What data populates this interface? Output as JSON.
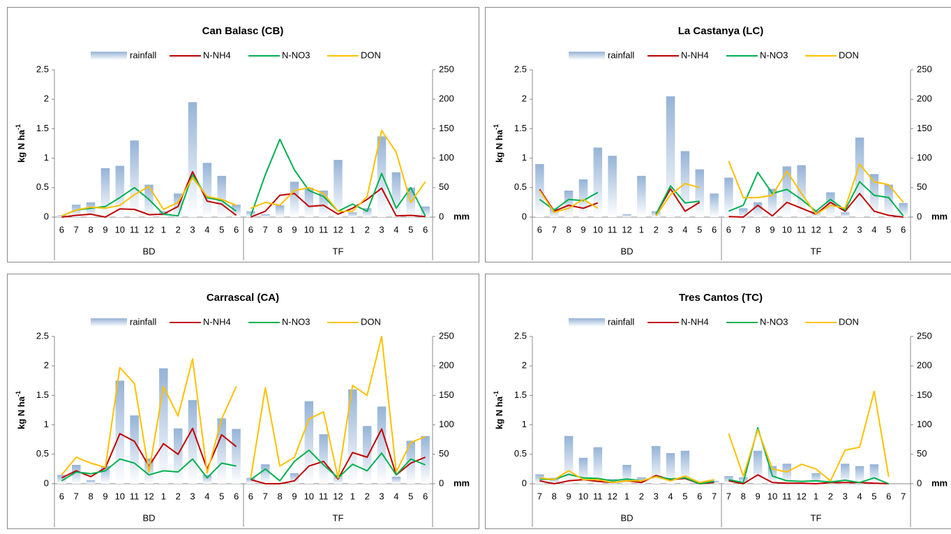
{
  "chart_data": [
    {
      "type": "combo",
      "title": "Can Balasc (CB)",
      "ylabel": "kg N ha",
      "ylabel_exponent": "-1",
      "y2label": "mm",
      "ylim": [
        0,
        2.5
      ],
      "yticks": [
        0,
        0.5,
        1,
        1.5,
        2,
        2.5
      ],
      "y2lim": [
        0,
        250
      ],
      "y2ticks": [
        0,
        50,
        100,
        150,
        200,
        250
      ],
      "groups": [
        {
          "label": "BD",
          "categories": [
            "6",
            "7",
            "8",
            "9",
            "10",
            "11",
            "12",
            "1",
            "2",
            "3",
            "4",
            "5",
            "6"
          ]
        },
        {
          "label": "TF",
          "categories": [
            "6",
            "7",
            "8",
            "9",
            "10",
            "11",
            "12",
            "1",
            "2",
            "3",
            "4",
            "5",
            "6"
          ]
        }
      ],
      "series": [
        {
          "name": "rainfall",
          "type": "bar",
          "axis": "y2",
          "color": "#95b3d7",
          "values": [
            [
              3,
              21,
              25,
              83,
              87,
              130,
              55,
              10,
              40,
              195,
              92,
              70,
              21
            ],
            [
              10,
              5,
              20,
              60,
              50,
              45,
              97,
              8,
              15,
              137,
              76,
              50,
              18
            ]
          ]
        },
        {
          "name": "N-NH4",
          "type": "line",
          "color": "#c00000",
          "values": [
            [
              0,
              0.03,
              0.05,
              0,
              0.14,
              0.13,
              0.04,
              0.05,
              0.18,
              0.77,
              0.27,
              0.22,
              0.03
            ],
            [
              0,
              0.1,
              0.37,
              0.4,
              0.18,
              0.2,
              0.05,
              0.15,
              0.3,
              0.49,
              0.02,
              0.03,
              0.01
            ]
          ]
        },
        {
          "name": "N-NO3",
          "type": "line",
          "color": "#00b050",
          "values": [
            [
              0.02,
              0.12,
              0.15,
              0.18,
              0.33,
              0.5,
              0.3,
              0.05,
              0.02,
              0.72,
              0.33,
              0.28,
              0.1
            ],
            [
              0.02,
              0.72,
              1.32,
              0.8,
              0.45,
              0.35,
              0.1,
              0.22,
              0.1,
              0.74,
              0.15,
              0.5,
              0.02
            ]
          ]
        },
        {
          "name": "DON",
          "type": "line",
          "color": "#ffc000",
          "values": [
            [
              0.02,
              0.12,
              0.17,
              0.15,
              0.2,
              0.38,
              0.52,
              0.13,
              0.25,
              0.67,
              0.35,
              0.3,
              0.2
            ],
            [
              0.15,
              0.25,
              0.2,
              0.45,
              0.5,
              0.4,
              0.1,
              0.1,
              0.35,
              1.47,
              1.1,
              0.25,
              0.6
            ]
          ]
        }
      ]
    },
    {
      "type": "combo",
      "title": "La Castanya (LC)",
      "ylabel": "kg N ha",
      "ylabel_exponent": "-1",
      "y2label": "mm",
      "ylim": [
        0,
        2.5
      ],
      "yticks": [
        0,
        0.5,
        1,
        1.5,
        2,
        2.5
      ],
      "y2lim": [
        0,
        250
      ],
      "y2ticks": [
        0,
        50,
        100,
        150,
        200,
        250
      ],
      "groups": [
        {
          "label": "BD",
          "categories": [
            "6",
            "7",
            "8",
            "9",
            "10",
            "11",
            "12",
            "1",
            "2",
            "3",
            "4",
            "5",
            "6"
          ]
        },
        {
          "label": "TF",
          "categories": [
            "6",
            "7",
            "8",
            "9",
            "10",
            "11",
            "12",
            "1",
            "2",
            "3",
            "4",
            "5",
            "6"
          ]
        }
      ],
      "series": [
        {
          "name": "rainfall",
          "type": "bar",
          "axis": "y2",
          "color": "#95b3d7",
          "values": [
            [
              90,
              15,
              45,
              64,
              118,
              104,
              5,
              70,
              10,
              205,
              112,
              81,
              40
            ],
            [
              67,
              15,
              25,
              48,
              86,
              88,
              10,
              42,
              8,
              135,
              73,
              55,
              24
            ]
          ]
        },
        {
          "name": "N-NH4",
          "type": "line",
          "color": "#c00000",
          "values": [
            [
              0.47,
              0.1,
              0.2,
              0.15,
              0.24,
              null,
              null,
              null,
              0.05,
              0.48,
              0.1,
              0.25,
              null
            ],
            [
              0.01,
              0,
              0.2,
              0.02,
              0.25,
              0.15,
              0.05,
              0.25,
              0.1,
              0.4,
              0.1,
              0.03,
              0
            ]
          ]
        },
        {
          "name": "N-NO3",
          "type": "line",
          "color": "#00b050",
          "values": [
            [
              0.3,
              0.12,
              0.3,
              0.28,
              0.42,
              null,
              null,
              null,
              0.05,
              0.53,
              0.24,
              0.27,
              null
            ],
            [
              0.1,
              0.2,
              0.76,
              0.4,
              0.47,
              0.3,
              0.1,
              0.3,
              0.12,
              0.6,
              0.37,
              0.33,
              0.02
            ]
          ]
        },
        {
          "name": "DON",
          "type": "line",
          "color": "#ffc000",
          "values": [
            [
              0.45,
              0.08,
              0.15,
              0.3,
              0.15,
              null,
              null,
              null,
              0.02,
              0.38,
              0.57,
              0.5,
              null
            ],
            [
              0.95,
              0.33,
              0.33,
              0.37,
              0.78,
              0.4,
              0.05,
              0.2,
              0.15,
              0.9,
              0.6,
              0.55,
              0.25
            ]
          ]
        }
      ]
    },
    {
      "type": "combo",
      "title": "Carrascal (CA)",
      "ylabel": "kg N ha",
      "ylabel_exponent": "-1",
      "y2label": "mm",
      "ylim": [
        0,
        2.5
      ],
      "yticks": [
        0,
        0.5,
        1,
        1.5,
        2,
        2.5
      ],
      "y2lim": [
        0,
        250
      ],
      "y2ticks": [
        0,
        50,
        100,
        150,
        200,
        250
      ],
      "groups": [
        {
          "label": "BD",
          "categories": [
            "6",
            "7",
            "8",
            "9",
            "10",
            "11",
            "12",
            "1",
            "2",
            "3",
            "4",
            "5",
            "6"
          ]
        },
        {
          "label": "TF",
          "categories": [
            "6",
            "7",
            "8",
            "9",
            "10",
            "11",
            "12",
            "1",
            "2",
            "3",
            "4",
            "5",
            "6"
          ]
        }
      ],
      "series": [
        {
          "name": "rainfall",
          "type": "bar",
          "axis": "y2",
          "color": "#95b3d7",
          "values": [
            [
              15,
              32,
              6,
              30,
              175,
              116,
              43,
              196,
              94,
              142,
              15,
              111,
              93
            ],
            [
              10,
              33,
              0,
              18,
              140,
              84,
              15,
              160,
              98,
              131,
              12,
              73,
              81
            ]
          ]
        },
        {
          "name": "N-NH4",
          "type": "line",
          "color": "#c00000",
          "values": [
            [
              0.1,
              0.22,
              0.12,
              0.27,
              0.85,
              0.72,
              0.3,
              0.68,
              0.5,
              0.94,
              0.25,
              0.83,
              0.63
            ],
            [
              0.07,
              0,
              0,
              0.05,
              0.3,
              0.38,
              0.08,
              0.53,
              0.45,
              0.93,
              0.15,
              0.35,
              0.45
            ]
          ]
        },
        {
          "name": "N-NO3",
          "type": "line",
          "color": "#00b050",
          "values": [
            [
              0.05,
              0.2,
              0.17,
              0.22,
              0.42,
              0.35,
              0.15,
              0.22,
              0.2,
              0.42,
              0.1,
              0.35,
              0.3
            ],
            [
              0.07,
              0.25,
              0.05,
              0.38,
              0.57,
              0.32,
              0.1,
              0.33,
              0.22,
              0.52,
              0.15,
              0.42,
              0.32
            ]
          ]
        },
        {
          "name": "DON",
          "type": "line",
          "color": "#ffc000",
          "values": [
            [
              0.15,
              0.45,
              0.35,
              0.28,
              1.97,
              1.7,
              0.2,
              1.65,
              1.15,
              2.12,
              0.18,
              1.1,
              1.65
            ],
            [
              0.1,
              1.63,
              0.3,
              0.45,
              1.1,
              1.22,
              0.1,
              1.67,
              1.5,
              2.5,
              0.2,
              0.7,
              0.8
            ]
          ]
        }
      ]
    },
    {
      "type": "combo",
      "title": "Tres Cantos (TC)",
      "ylabel": "kg N ha",
      "ylabel_exponent": "-1",
      "y2label": "mm",
      "ylim": [
        0,
        2.5
      ],
      "yticks": [
        0,
        0.5,
        1,
        1.5,
        2,
        2.5
      ],
      "y2lim": [
        0,
        250
      ],
      "y2ticks": [
        0,
        50,
        100,
        150,
        200,
        250
      ],
      "groups": [
        {
          "label": "BD",
          "categories": [
            "7",
            "8",
            "9",
            "10",
            "11",
            "12",
            "1",
            "2",
            "3",
            "4",
            "5",
            "6",
            "7"
          ]
        },
        {
          "label": "TF",
          "categories": [
            "7",
            "8",
            "9",
            "10",
            "11",
            "12",
            "1",
            "2",
            "3",
            "4",
            "5",
            "6",
            "7"
          ]
        }
      ],
      "series": [
        {
          "name": "rainfall",
          "type": "bar",
          "axis": "y2",
          "color": "#95b3d7",
          "values": [
            [
              16,
              10,
              81,
              44,
              62,
              8,
              32,
              11,
              64,
              52,
              56,
              0,
              5
            ],
            [
              13,
              11,
              56,
              30,
              34,
              2,
              18,
              5,
              34,
              30,
              33,
              0,
              0
            ]
          ]
        },
        {
          "name": "N-NH4",
          "type": "line",
          "color": "#c00000",
          "values": [
            [
              0.05,
              0,
              0.05,
              0.07,
              0.04,
              0.02,
              0.05,
              0.02,
              0.14,
              0.07,
              0.09,
              0,
              0.02
            ],
            [
              0.05,
              0,
              0.15,
              0.02,
              0.01,
              0.01,
              0,
              0.02,
              0.02,
              0.02,
              0.01,
              0,
              null
            ]
          ]
        },
        {
          "name": "N-NO3",
          "type": "line",
          "color": "#00b050",
          "values": [
            [
              0.08,
              0.07,
              0.16,
              0.1,
              0.09,
              0.05,
              0.08,
              0.05,
              0.12,
              0.08,
              0.1,
              0,
              0.04
            ],
            [
              0.07,
              0.02,
              0.95,
              0.13,
              0.05,
              0.04,
              0.05,
              0.03,
              0.06,
              0.02,
              0.1,
              0,
              null
            ]
          ]
        },
        {
          "name": "DON",
          "type": "line",
          "color": "#ffc000",
          "values": [
            [
              0.1,
              0.07,
              0.22,
              0.07,
              0.07,
              0.02,
              0.05,
              0.05,
              0.12,
              0.05,
              0.13,
              0.02,
              0.07
            ],
            [
              0.85,
              0.13,
              0.92,
              0.25,
              0.2,
              0.33,
              0.25,
              0.05,
              0.57,
              0.62,
              1.57,
              0.12,
              null
            ]
          ]
        }
      ]
    }
  ]
}
